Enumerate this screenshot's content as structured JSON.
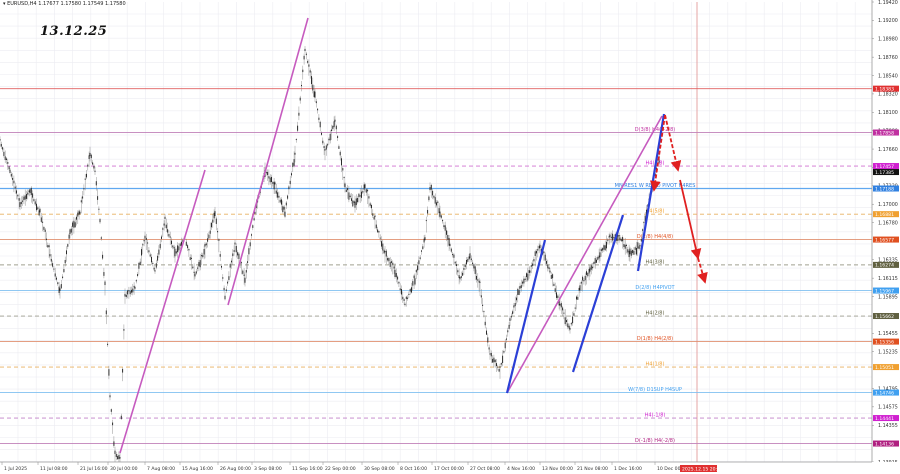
{
  "header": {
    "symbol_line": "▾ EURUSD,H4  1.17677 1.17580 1.17549 1.17580",
    "annotation": "13.12.25"
  },
  "colors": {
    "grid": "#ececf2",
    "candle": "#2b2b2b",
    "pink_trend": "#c65bbf",
    "blue_trend": "#2b3fd6",
    "red_arrow": "#e02020",
    "current_line": "#d090c0",
    "vline_red": "#e09090"
  },
  "chart_data": {
    "type": "candlestick",
    "title": "EURUSD,H4",
    "symbol": "EURUSD",
    "timeframe": "H4",
    "ohlc_header": {
      "open": 1.17677,
      "high": 1.1758,
      "low": 1.17549,
      "close": 1.1758
    },
    "annotation": "13.12.25",
    "ylim": [
      1.13915,
      1.1942
    ],
    "y_ticks": [
      1.1942,
      1.192,
      1.1898,
      1.1876,
      1.1854,
      1.1832,
      1.181,
      1.1788,
      1.1766,
      1.1744,
      1.1722,
      1.17,
      1.1678,
      1.16335,
      1.16115,
      1.15895,
      1.15455,
      1.15235,
      1.14795,
      1.14575,
      1.14355,
      1.13915
    ],
    "x_ticks": [
      "1 Jul 2025",
      "11 Jul 08:00",
      "21 Jul 16:00",
      "30 Jul 00:00",
      "7 Aug 08:00",
      "15 Aug 16:00",
      "26 Aug 00:00",
      "3 Sep 08:00",
      "11 Sep 16:00",
      "22 Sep 00:00",
      "30 Sep 08:00",
      "8 Oct 16:00",
      "17 Oct 00:00",
      "27 Oct 08:00",
      "4 Nov 16:00",
      "13 Nov 00:00",
      "21 Nov 08:00",
      "1 Dec 16:00",
      "10 Dec 00:00"
    ],
    "current_time_label": "2025.12.15 20:00",
    "price_path": [
      [
        0,
        1.1775
      ],
      [
        10,
        1.174
      ],
      [
        20,
        1.17
      ],
      [
        30,
        1.1715
      ],
      [
        40,
        1.169
      ],
      [
        50,
        1.164
      ],
      [
        60,
        1.1595
      ],
      [
        70,
        1.1665
      ],
      [
        80,
        1.169
      ],
      [
        90,
        1.176
      ],
      [
        95,
        1.174
      ],
      [
        100,
        1.168
      ],
      [
        105,
        1.16
      ],
      [
        110,
        1.147
      ],
      [
        115,
        1.14
      ],
      [
        120,
        1.1395
      ],
      [
        125,
        1.159
      ],
      [
        135,
        1.16
      ],
      [
        145,
        1.166
      ],
      [
        155,
        1.162
      ],
      [
        165,
        1.168
      ],
      [
        175,
        1.164
      ],
      [
        185,
        1.166
      ],
      [
        195,
        1.1615
      ],
      [
        205,
        1.1645
      ],
      [
        215,
        1.169
      ],
      [
        225,
        1.159
      ],
      [
        235,
        1.165
      ],
      [
        245,
        1.161
      ],
      [
        255,
        1.169
      ],
      [
        265,
        1.174
      ],
      [
        275,
        1.172
      ],
      [
        285,
        1.169
      ],
      [
        295,
        1.176
      ],
      [
        305,
        1.1885
      ],
      [
        315,
        1.183
      ],
      [
        325,
        1.176
      ],
      [
        335,
        1.18
      ],
      [
        345,
        1.172
      ],
      [
        355,
        1.17
      ],
      [
        365,
        1.172
      ],
      [
        375,
        1.168
      ],
      [
        385,
        1.164
      ],
      [
        395,
        1.162
      ],
      [
        405,
        1.158
      ],
      [
        415,
        1.161
      ],
      [
        425,
        1.166
      ],
      [
        430,
        1.172
      ],
      [
        440,
        1.169
      ],
      [
        450,
        1.165
      ],
      [
        460,
        1.161
      ],
      [
        470,
        1.164
      ],
      [
        480,
        1.16
      ],
      [
        490,
        1.152
      ],
      [
        500,
        1.15
      ],
      [
        510,
        1.156
      ],
      [
        520,
        1.16
      ],
      [
        530,
        1.162
      ],
      [
        540,
        1.165
      ],
      [
        550,
        1.162
      ],
      [
        560,
        1.158
      ],
      [
        570,
        1.155
      ],
      [
        580,
        1.16
      ],
      [
        590,
        1.162
      ],
      [
        600,
        1.164
      ],
      [
        610,
        1.166
      ],
      [
        620,
        1.166
      ],
      [
        630,
        1.164
      ],
      [
        640,
        1.165
      ],
      [
        650,
        1.171
      ],
      [
        660,
        1.176
      ]
    ],
    "horizontal_levels": [
      {
        "price": 1.18383,
        "color": "#e06060",
        "style": "solid",
        "label": "",
        "axis_label": "1.18383",
        "axis_bg": "#e03030"
      },
      {
        "price": 1.17858,
        "color": "#c080b8",
        "style": "solid",
        "label": "D(3/8) H4(+2/8)",
        "axis_label": "1.17858",
        "axis_bg": "#c030a0"
      },
      {
        "price": 1.17457,
        "color": "#d070d0",
        "style": "dashed",
        "label": "H4(7/8)",
        "axis_label": "1.17457",
        "axis_bg": "#d020d0"
      },
      {
        "price": 1.17385,
        "color": "#222222",
        "style": "none",
        "label": "",
        "axis_label": "1.17385",
        "axis_bg": "#111111"
      },
      {
        "price": 1.17188,
        "color": "#60a8f0",
        "style": "solid",
        "label": "MN RES1 W RES D PIVOT H4RES",
        "axis_label": "1.17188",
        "axis_bg": "#3080e0"
      },
      {
        "price": 1.16881,
        "color": "#e8b060",
        "style": "dashed",
        "label": "H4(5/8)",
        "axis_label": "1.16881",
        "axis_bg": "#f0a030"
      },
      {
        "price": 1.16577,
        "color": "#e09070",
        "style": "solid",
        "label": "D(2/8) H4(4/8)",
        "axis_label": "1.16577",
        "axis_bg": "#e05020"
      },
      {
        "price": 1.16274,
        "color": "#a0a090",
        "style": "dashed",
        "label": "H4(3/8)",
        "axis_label": "1.16274",
        "axis_bg": "#606040"
      },
      {
        "price": 1.15967,
        "color": "#80c0f0",
        "style": "solid",
        "label": "D(2/8) H4PIVOT",
        "axis_label": "1.15967",
        "axis_bg": "#40a0f0"
      },
      {
        "price": 1.15662,
        "color": "#a0a090",
        "style": "dashed",
        "label": "H4(2/8)",
        "axis_label": "1.15662",
        "axis_bg": "#606040"
      },
      {
        "price": 1.15356,
        "color": "#e09070",
        "style": "solid",
        "label": "D(1/8) H4(2/8)",
        "axis_label": "1.15356",
        "axis_bg": "#e05020"
      },
      {
        "price": 1.15051,
        "color": "#e8b060",
        "style": "dashed",
        "label": "H4(1/8)",
        "axis_label": "1.15051",
        "axis_bg": "#f0a030"
      },
      {
        "price": 1.14746,
        "color": "#80c0f0",
        "style": "solid",
        "label": "W(7/8) D1SUP H4SUP",
        "axis_label": "1.14746",
        "axis_bg": "#40a0f0"
      },
      {
        "price": 1.14441,
        "color": "#c080c8",
        "style": "dashed",
        "label": "H4(-1/8)",
        "axis_label": "1.14441",
        "axis_bg": "#d020d0"
      },
      {
        "price": 1.14136,
        "color": "#c080b8",
        "style": "solid",
        "label": "D(-1/8) H4(-2/8)",
        "axis_label": "1.14136",
        "axis_bg": "#b02080"
      }
    ],
    "trend_lines": [
      {
        "color": "pink",
        "from": [
          120,
          453
        ],
        "to": [
          205,
          170
        ]
      },
      {
        "color": "pink",
        "from": [
          228,
          305
        ],
        "to": [
          308,
          18
        ]
      },
      {
        "color": "pink",
        "from": [
          507,
          393
        ],
        "to": [
          662,
          116
        ]
      },
      {
        "color": "blue",
        "from": [
          507,
          393
        ],
        "to": [
          545,
          240
        ]
      },
      {
        "color": "blue",
        "from": [
          573,
          372
        ],
        "to": [
          623,
          215
        ]
      },
      {
        "color": "blue",
        "from": [
          638,
          271
        ],
        "to": [
          664,
          114
        ]
      }
    ],
    "projection_arrows": [
      {
        "style": "dashed",
        "from": [
          665,
          115
        ],
        "to": [
          654,
          190
        ]
      },
      {
        "style": "dashed",
        "from": [
          665,
          115
        ],
        "to": [
          678,
          170
        ]
      },
      {
        "style": "solid",
        "from": [
          680,
          180
        ],
        "to": [
          698,
          258
        ]
      },
      {
        "style": "dashed",
        "from": [
          698,
          258
        ],
        "to": [
          705,
          282
        ]
      }
    ],
    "current_time_vline_x": 697,
    "grid": true
  }
}
